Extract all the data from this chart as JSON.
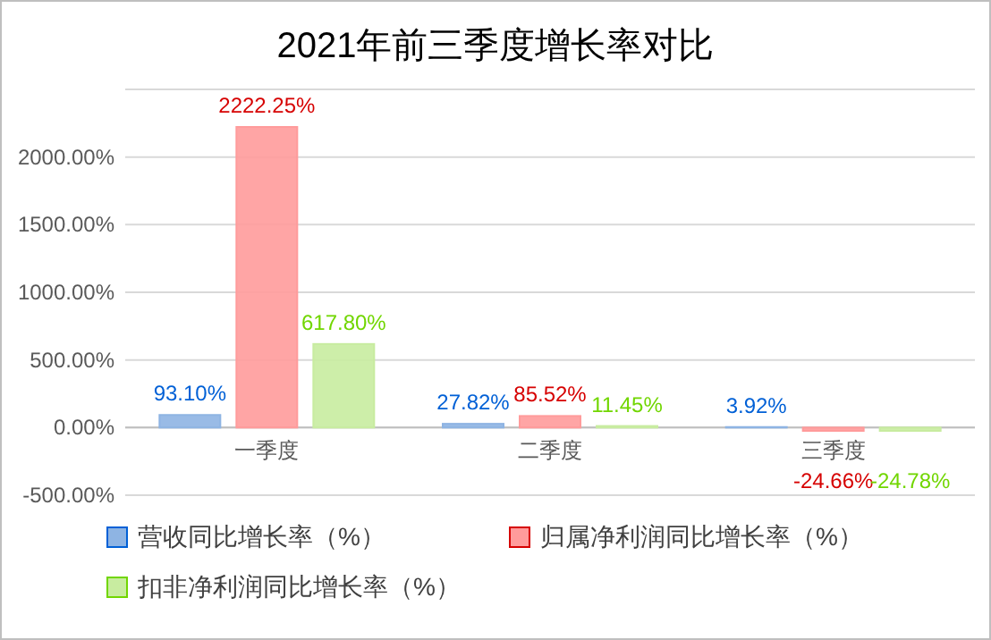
{
  "chart_data": {
    "type": "bar",
    "title": "2021年前三季度增长率对比",
    "categories": [
      "一季度",
      "二季度",
      "三季度"
    ],
    "series": [
      {
        "name": "营收同比增长率（%）",
        "color": "#8eb4e3",
        "values": [
          93.1,
          27.82,
          3.92
        ],
        "value_labels": [
          "93.10%",
          "27.82%",
          "3.92%"
        ]
      },
      {
        "name": "归属净利润同比增长率（%）",
        "color": "#ff9b9b",
        "values": [
          2222.25,
          85.52,
          -24.66
        ],
        "value_labels": [
          "2222.25%",
          "85.52%",
          "-24.66%"
        ]
      },
      {
        "name": "扣非净利润同比增长率（%）",
        "color": "#c8eca0",
        "values": [
          617.8,
          11.45,
          -24.78
        ],
        "value_labels": [
          "617.80%",
          "11.45%",
          "-24.78%"
        ]
      }
    ],
    "ylim": [
      -500,
      2500
    ],
    "yticks": [
      {
        "value": -500,
        "label": "-500.00%"
      },
      {
        "value": 0,
        "label": "0.00%"
      },
      {
        "value": 500,
        "label": "500.00%"
      },
      {
        "value": 1000,
        "label": "1000.00%"
      },
      {
        "value": 1500,
        "label": "1500.00%"
      },
      {
        "value": 2000,
        "label": "2000.00%"
      },
      {
        "value": 2500,
        "label": null
      }
    ],
    "grid": "y",
    "legend": "bottom"
  }
}
